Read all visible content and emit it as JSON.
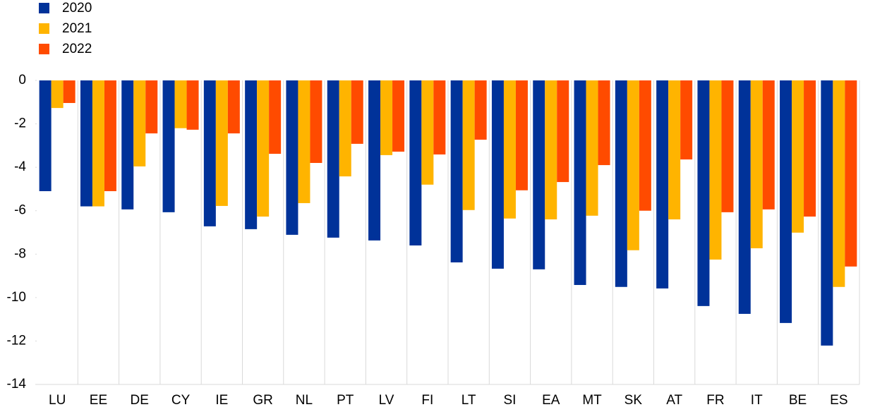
{
  "chart_data": {
    "type": "bar",
    "categories": [
      "LU",
      "EE",
      "DE",
      "CY",
      "IE",
      "GR",
      "NL",
      "PT",
      "LV",
      "FI",
      "LT",
      "SI",
      "EA",
      "MT",
      "SK",
      "AT",
      "FR",
      "IT",
      "BE",
      "ES"
    ],
    "series": [
      {
        "name": "2020",
        "color": "#003299",
        "values": [
          -5.1,
          -5.8,
          -5.94,
          -6.07,
          -6.72,
          -6.85,
          -7.11,
          -7.24,
          -7.37,
          -7.6,
          -8.38,
          -8.67,
          -8.7,
          -9.42,
          -9.51,
          -9.58,
          -10.39,
          -10.75,
          -11.17,
          -12.21
        ]
      },
      {
        "name": "2021",
        "color": "#ffb400",
        "values": [
          -1.27,
          -5.8,
          -3.96,
          -2.2,
          -5.78,
          -6.27,
          -5.65,
          -4.42,
          -3.44,
          -4.8,
          -5.97,
          -6.36,
          -6.4,
          -6.23,
          -7.82,
          -6.4,
          -8.25,
          -7.73,
          -7.01,
          -9.51
        ]
      },
      {
        "name": "2022",
        "color": "#ff4b00",
        "values": [
          -1.04,
          -5.1,
          -2.44,
          -2.27,
          -2.44,
          -3.38,
          -3.8,
          -2.92,
          -3.28,
          -3.41,
          -2.73,
          -5.06,
          -4.68,
          -3.9,
          -6.0,
          -3.64,
          -6.07,
          -5.94,
          -6.27,
          -8.57
        ]
      }
    ],
    "ylim": [
      -14,
      0
    ],
    "yticks": [
      0,
      -2,
      -4,
      -6,
      -8,
      -10,
      -12,
      -14
    ],
    "grid": true
  }
}
